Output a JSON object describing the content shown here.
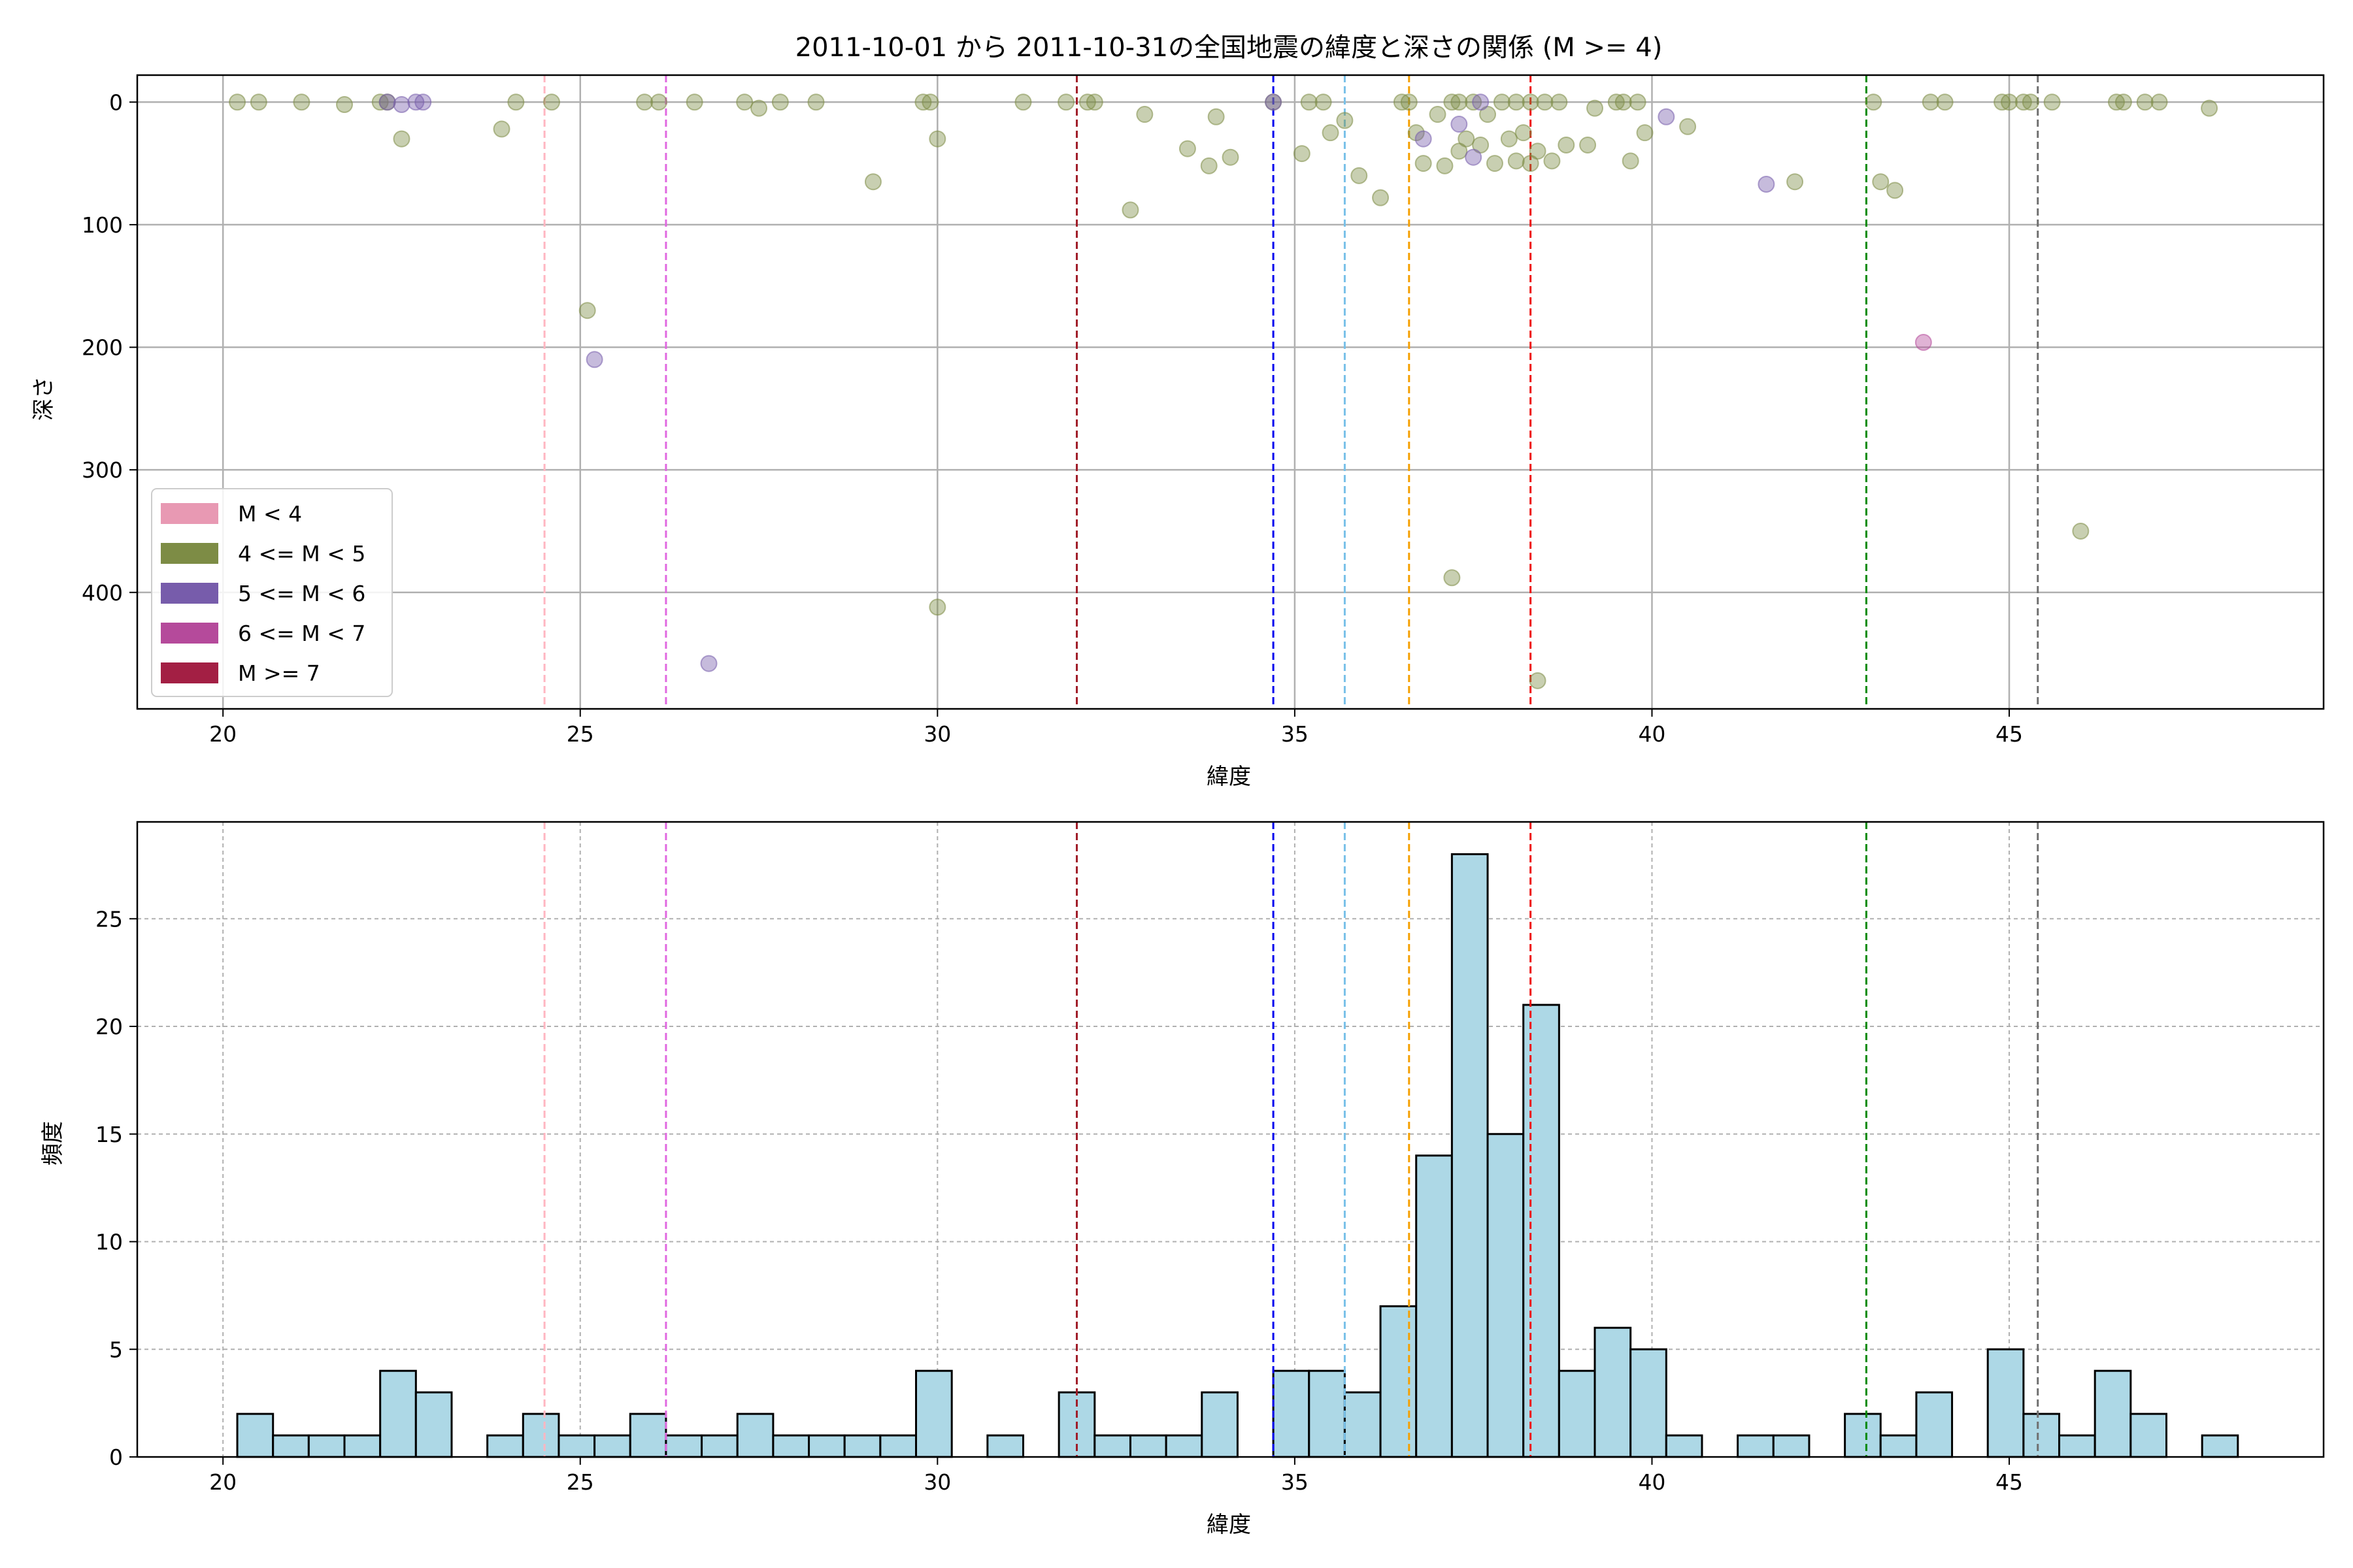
{
  "title": "2011-10-01 から 2011-10-31の全国地震の緯度と深さの関係 (M >= 4)",
  "chart_data": [
    {
      "type": "scatter",
      "xlabel": "緯度",
      "ylabel": "深さ",
      "xlim": [
        18.8,
        49.4
      ],
      "ylim": [
        495,
        -22
      ],
      "y_inverted": true,
      "xticks": [
        20,
        25,
        30,
        35,
        40,
        45
      ],
      "yticks": [
        0,
        100,
        200,
        300,
        400
      ],
      "grid": true,
      "legend": {
        "placement": "lower-left",
        "entries": [
          {
            "label": "M < 4",
            "color": "#e899b3"
          },
          {
            "label": "4 <= M < 5",
            "color": "#7d8c45"
          },
          {
            "label": "5 <= M < 6",
            "color": "#775cab"
          },
          {
            "label": "6 <= M < 7",
            "color": "#b54a9b"
          },
          {
            "label": "M >= 7",
            "color": "#a31f44"
          }
        ]
      },
      "reference_lines": [
        {
          "x": 24.5,
          "color": "#ffb6c1"
        },
        {
          "x": 26.2,
          "color": "#e068e0"
        },
        {
          "x": 31.95,
          "color": "#a01c28"
        },
        {
          "x": 34.7,
          "color": "#0000ee"
        },
        {
          "x": 35.7,
          "color": "#78c0e8"
        },
        {
          "x": 36.6,
          "color": "#f5a000"
        },
        {
          "x": 38.3,
          "color": "#ee1010"
        },
        {
          "x": 43.0,
          "color": "#008a00"
        },
        {
          "x": 45.4,
          "color": "#707070"
        }
      ],
      "series": [
        {
          "color": "#7d8c45",
          "points": [
            [
              20.2,
              0
            ],
            [
              20.5,
              0
            ],
            [
              21.1,
              0
            ],
            [
              21.7,
              2
            ],
            [
              22.2,
              0
            ],
            [
              22.3,
              0
            ],
            [
              22.5,
              30
            ],
            [
              23.9,
              22
            ],
            [
              24.1,
              0
            ],
            [
              24.6,
              0
            ],
            [
              25.1,
              170
            ],
            [
              25.9,
              0
            ],
            [
              26.1,
              0
            ],
            [
              26.6,
              0
            ],
            [
              27.3,
              0
            ],
            [
              27.5,
              5
            ],
            [
              27.8,
              0
            ],
            [
              28.3,
              0
            ],
            [
              29.1,
              65
            ],
            [
              29.8,
              0
            ],
            [
              29.9,
              0
            ],
            [
              30.0,
              30
            ],
            [
              30.0,
              412
            ],
            [
              31.2,
              0
            ],
            [
              31.8,
              0
            ],
            [
              32.1,
              0
            ],
            [
              32.2,
              0
            ],
            [
              32.7,
              88
            ],
            [
              32.9,
              10
            ],
            [
              33.5,
              38
            ],
            [
              33.8,
              52
            ],
            [
              33.9,
              12
            ],
            [
              34.1,
              45
            ],
            [
              34.7,
              0
            ],
            [
              35.1,
              42
            ],
            [
              35.2,
              0
            ],
            [
              35.4,
              0
            ],
            [
              35.5,
              25
            ],
            [
              35.7,
              15
            ],
            [
              35.9,
              60
            ],
            [
              36.2,
              78
            ],
            [
              36.5,
              0
            ],
            [
              36.6,
              0
            ],
            [
              36.7,
              25
            ],
            [
              36.8,
              50
            ],
            [
              37.0,
              10
            ],
            [
              37.1,
              52
            ],
            [
              37.2,
              0
            ],
            [
              37.3,
              0
            ],
            [
              37.3,
              40
            ],
            [
              37.4,
              30
            ],
            [
              37.5,
              0
            ],
            [
              37.6,
              35
            ],
            [
              37.7,
              10
            ],
            [
              37.8,
              50
            ],
            [
              37.9,
              0
            ],
            [
              38.0,
              30
            ],
            [
              38.1,
              0
            ],
            [
              38.1,
              48
            ],
            [
              38.2,
              25
            ],
            [
              38.3,
              50
            ],
            [
              38.3,
              0
            ],
            [
              38.4,
              40
            ],
            [
              38.5,
              0
            ],
            [
              38.6,
              48
            ],
            [
              38.7,
              0
            ],
            [
              38.8,
              35
            ],
            [
              39.1,
              35
            ],
            [
              39.2,
              5
            ],
            [
              39.5,
              0
            ],
            [
              39.6,
              0
            ],
            [
              39.7,
              48
            ],
            [
              39.8,
              0
            ],
            [
              39.9,
              25
            ],
            [
              40.5,
              20
            ],
            [
              42.0,
              65
            ],
            [
              43.1,
              0
            ],
            [
              43.2,
              65
            ],
            [
              43.4,
              72
            ],
            [
              43.9,
              0
            ],
            [
              44.1,
              0
            ],
            [
              44.9,
              0
            ],
            [
              45.0,
              0
            ],
            [
              45.2,
              0
            ],
            [
              45.3,
              0
            ],
            [
              45.6,
              0
            ],
            [
              46.0,
              350
            ],
            [
              46.5,
              0
            ],
            [
              46.6,
              0
            ],
            [
              46.9,
              0
            ],
            [
              47.1,
              0
            ],
            [
              47.8,
              5
            ],
            [
              37.2,
              388
            ],
            [
              38.4,
              472
            ]
          ]
        },
        {
          "color": "#775cab",
          "points": [
            [
              22.3,
              0
            ],
            [
              22.5,
              2
            ],
            [
              22.7,
              0
            ],
            [
              22.8,
              0
            ],
            [
              25.2,
              210
            ],
            [
              26.8,
              458
            ],
            [
              34.7,
              0
            ],
            [
              36.8,
              30
            ],
            [
              37.3,
              18
            ],
            [
              37.5,
              45
            ],
            [
              37.6,
              0
            ],
            [
              40.2,
              12
            ],
            [
              41.6,
              67
            ]
          ]
        },
        {
          "color": "#b54a9b",
          "points": [
            [
              43.8,
              196
            ]
          ]
        }
      ]
    },
    {
      "type": "bar",
      "xlabel": "緯度",
      "ylabel": "頻度",
      "xlim": [
        18.8,
        49.4
      ],
      "ylim": [
        0,
        29.5
      ],
      "xticks": [
        20,
        25,
        30,
        35,
        40,
        45
      ],
      "yticks": [
        0,
        5,
        10,
        15,
        20,
        25
      ],
      "grid": true,
      "bar_color": "#add8e6",
      "bin_width": 0.5,
      "bins": [
        [
          20.2,
          2
        ],
        [
          20.7,
          1
        ],
        [
          21.2,
          1
        ],
        [
          21.7,
          1
        ],
        [
          22.2,
          4
        ],
        [
          22.7,
          3
        ],
        [
          23.7,
          1
        ],
        [
          24.2,
          2
        ],
        [
          24.7,
          1
        ],
        [
          25.2,
          1
        ],
        [
          25.7,
          2
        ],
        [
          26.2,
          1
        ],
        [
          26.7,
          1
        ],
        [
          27.2,
          2
        ],
        [
          27.7,
          1
        ],
        [
          28.2,
          1
        ],
        [
          28.7,
          1
        ],
        [
          29.2,
          1
        ],
        [
          29.7,
          4
        ],
        [
          30.7,
          1
        ],
        [
          31.7,
          3
        ],
        [
          32.2,
          1
        ],
        [
          32.7,
          1
        ],
        [
          33.2,
          1
        ],
        [
          33.7,
          3
        ],
        [
          34.7,
          4
        ],
        [
          35.2,
          4
        ],
        [
          35.7,
          3
        ],
        [
          36.2,
          7
        ],
        [
          36.7,
          14
        ],
        [
          37.2,
          28
        ],
        [
          37.7,
          15
        ],
        [
          38.2,
          21
        ],
        [
          38.7,
          4
        ],
        [
          39.2,
          6
        ],
        [
          39.7,
          5
        ],
        [
          40.2,
          1
        ],
        [
          41.2,
          1
        ],
        [
          41.7,
          1
        ],
        [
          42.7,
          2
        ],
        [
          43.2,
          1
        ],
        [
          43.7,
          3
        ],
        [
          44.7,
          5
        ],
        [
          45.2,
          2
        ],
        [
          45.7,
          1
        ],
        [
          46.2,
          4
        ],
        [
          46.7,
          2
        ],
        [
          47.7,
          1
        ]
      ],
      "reference_lines": [
        {
          "x": 24.5,
          "color": "#ffb6c1"
        },
        {
          "x": 26.2,
          "color": "#e068e0"
        },
        {
          "x": 31.95,
          "color": "#a01c28"
        },
        {
          "x": 34.7,
          "color": "#0000ee"
        },
        {
          "x": 35.7,
          "color": "#78c0e8"
        },
        {
          "x": 36.6,
          "color": "#f5a000"
        },
        {
          "x": 38.3,
          "color": "#ee1010"
        },
        {
          "x": 43.0,
          "color": "#008a00"
        },
        {
          "x": 45.4,
          "color": "#707070"
        }
      ]
    }
  ]
}
